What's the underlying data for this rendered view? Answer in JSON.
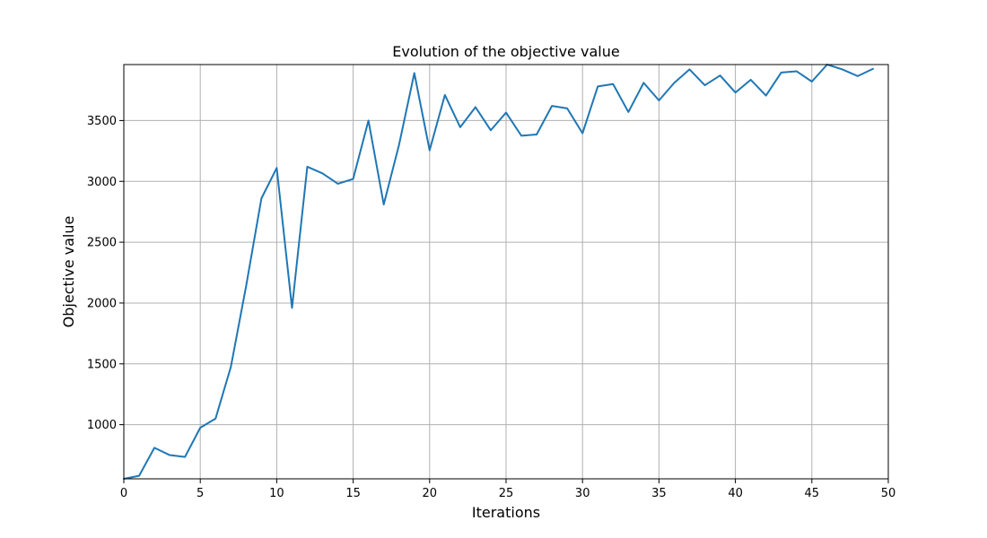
{
  "chart_data": {
    "type": "line",
    "title": "Evolution of the objective value",
    "xlabel": "Iterations",
    "ylabel": "Objective value",
    "xlim": [
      0,
      50
    ],
    "ylim": [
      555,
      3960
    ],
    "xticks": [
      0,
      5,
      10,
      15,
      20,
      25,
      30,
      35,
      40,
      45,
      50
    ],
    "yticks": [
      1000,
      1500,
      2000,
      2500,
      3000,
      3500
    ],
    "grid": true,
    "series": [
      {
        "color": "#1f77b4",
        "x": [
          0,
          1,
          2,
          3,
          4,
          5,
          6,
          7,
          8,
          9,
          10,
          11,
          12,
          13,
          14,
          15,
          16,
          17,
          18,
          19,
          20,
          21,
          22,
          23,
          24,
          25,
          26,
          27,
          28,
          29,
          30,
          31,
          32,
          33,
          34,
          35,
          36,
          37,
          38,
          39,
          40,
          41,
          42,
          43,
          44,
          45,
          46,
          47,
          48,
          49
        ],
        "y": [
          555,
          580,
          810,
          750,
          735,
          975,
          1050,
          1475,
          2140,
          2860,
          3110,
          1960,
          3120,
          3065,
          2980,
          3020,
          3500,
          2810,
          3300,
          3890,
          3255,
          3710,
          3445,
          3610,
          3420,
          3565,
          3375,
          3385,
          3620,
          3600,
          3395,
          3780,
          3800,
          3570,
          3810,
          3665,
          3810,
          3920,
          3790,
          3870,
          3730,
          3835,
          3705,
          3895,
          3905,
          3820,
          3960,
          3920,
          3865,
          3925
        ]
      }
    ]
  }
}
